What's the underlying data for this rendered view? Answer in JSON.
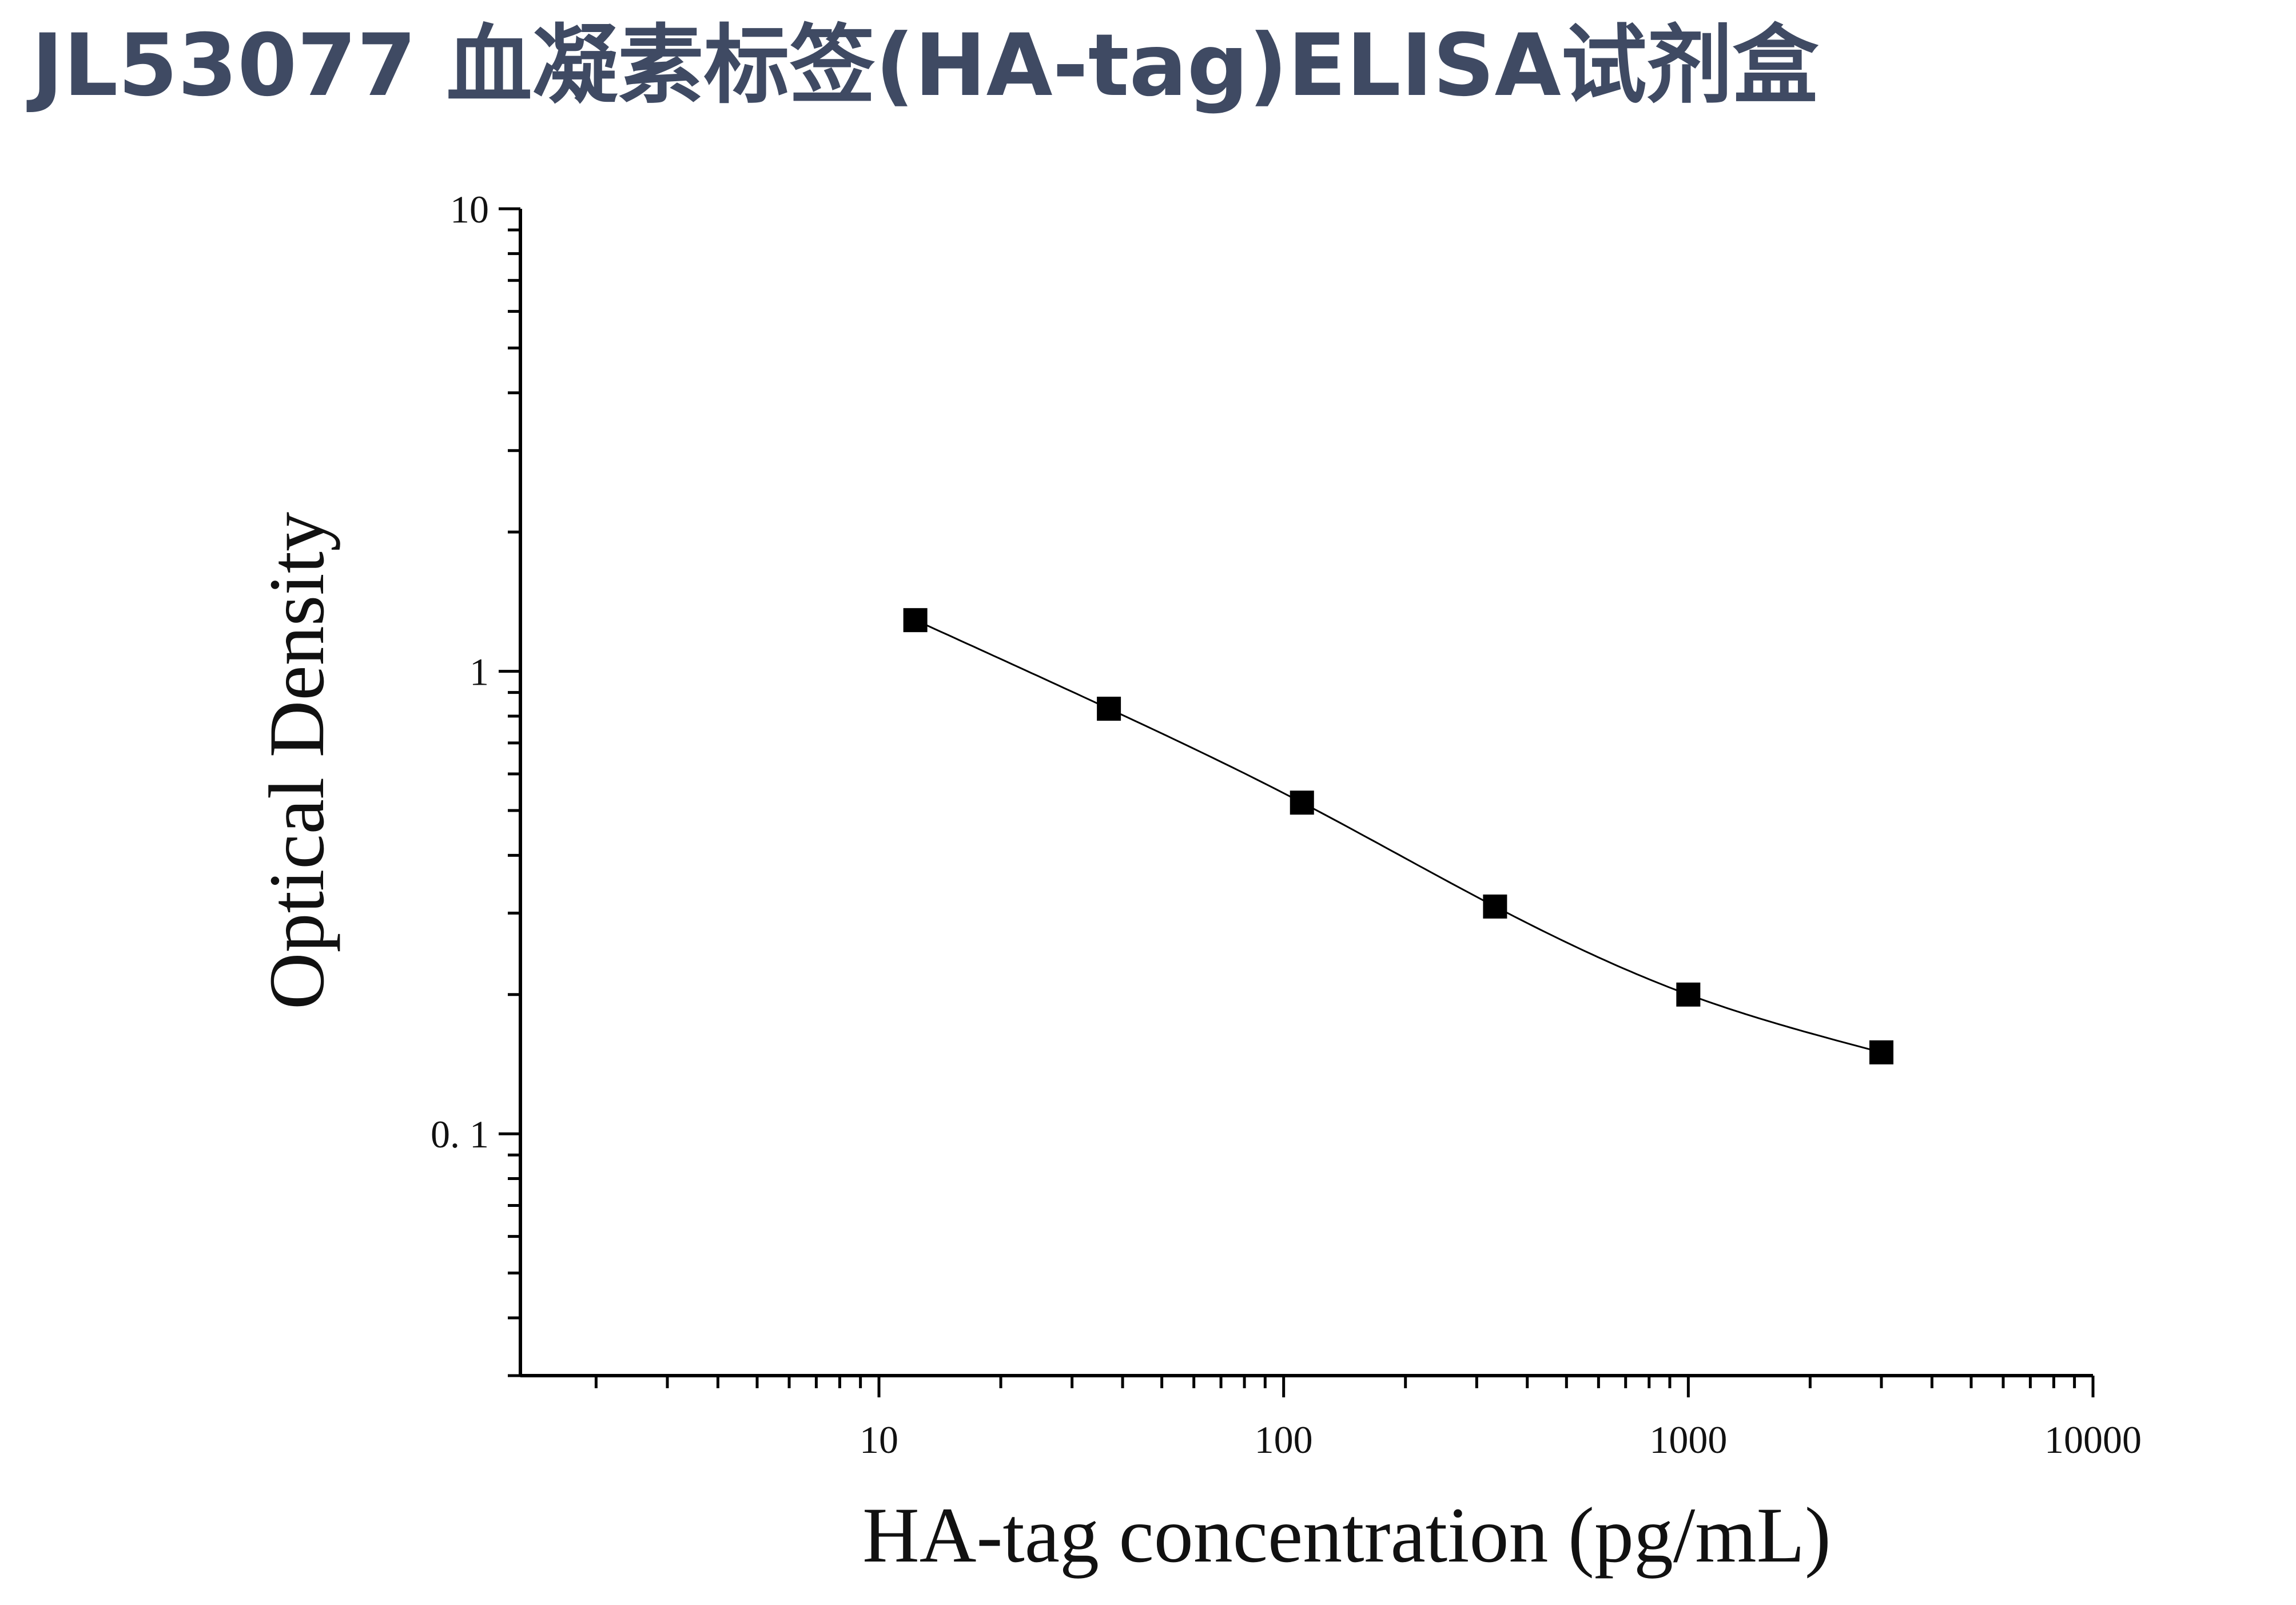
{
  "page": {
    "title": "JL53077 血凝素标签(HA-tag)ELISA试剂盒"
  },
  "chart_data": {
    "type": "scatter",
    "title": "",
    "xlabel": "HA-tag concentration (pg/mL)",
    "ylabel": "Optical Density",
    "x_scale": "log",
    "y_scale": "log",
    "xlim": [
      1.3,
      10000
    ],
    "ylim": [
      0.03,
      10
    ],
    "x_ticks": [
      10,
      100,
      1000,
      10000
    ],
    "x_tick_labels": [
      "10",
      "100",
      "1000",
      "10000"
    ],
    "y_ticks": [
      0.1,
      1,
      10
    ],
    "y_tick_labels": [
      "0. 1",
      "1",
      "10"
    ],
    "grid": false,
    "legend": "none",
    "marker": "square",
    "color": "#000000",
    "series": [
      {
        "x": [
          12.3,
          37,
          111,
          333,
          1000,
          3000
        ],
        "y": [
          1.29,
          0.83,
          0.52,
          0.31,
          0.2,
          0.15
        ],
        "fit_curve": true
      }
    ]
  }
}
